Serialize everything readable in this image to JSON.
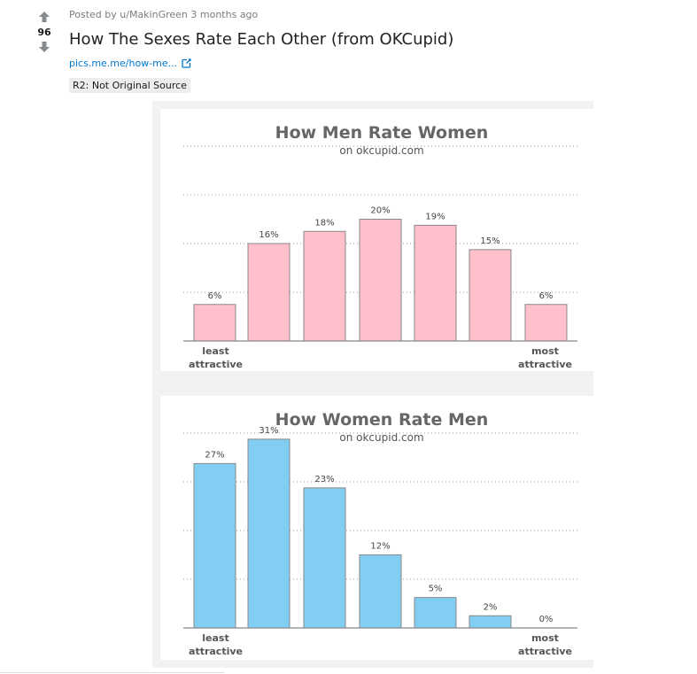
{
  "post": {
    "score": "96",
    "meta_prefix": "Posted by",
    "author": "u/MakinGreen",
    "age": "3 months ago",
    "title": "How The Sexes Rate Each Other (from OKCupid)",
    "link_text": "pics.me.me/how-me...",
    "flair": "R2: Not Original Source"
  },
  "icons": {
    "upvote": "arrow-up-icon",
    "downvote": "arrow-down-icon",
    "external": "external-link-icon"
  },
  "colors": {
    "pink": "#ffc0cb",
    "blue": "#82cdf2",
    "title_gray": "#666666"
  },
  "chart_data": [
    {
      "type": "bar",
      "title": "How Men Rate Women",
      "subtitle": "on okcupid.com",
      "values": [
        6,
        16,
        18,
        20,
        19,
        15,
        6
      ],
      "value_labels": [
        "6%",
        "16%",
        "18%",
        "20%",
        "19%",
        "15%",
        "6%"
      ],
      "x_left_label": [
        "least",
        "attractive"
      ],
      "x_right_label": [
        "most",
        "attractive"
      ],
      "ylim": [
        0,
        32
      ],
      "grid": "dotted",
      "color": "#ffc0cb"
    },
    {
      "type": "bar",
      "title": "How Women Rate Men",
      "subtitle": "on okcupid.com",
      "values": [
        27,
        31,
        23,
        12,
        5,
        2,
        0
      ],
      "value_labels": [
        "27%",
        "31%",
        "23%",
        "12%",
        "5%",
        "2%",
        "0%"
      ],
      "x_left_label": [
        "least",
        "attractive"
      ],
      "x_right_label": [
        "most",
        "attractive"
      ],
      "ylim": [
        0,
        32
      ],
      "grid": "dotted",
      "color": "#82cdf2"
    }
  ]
}
